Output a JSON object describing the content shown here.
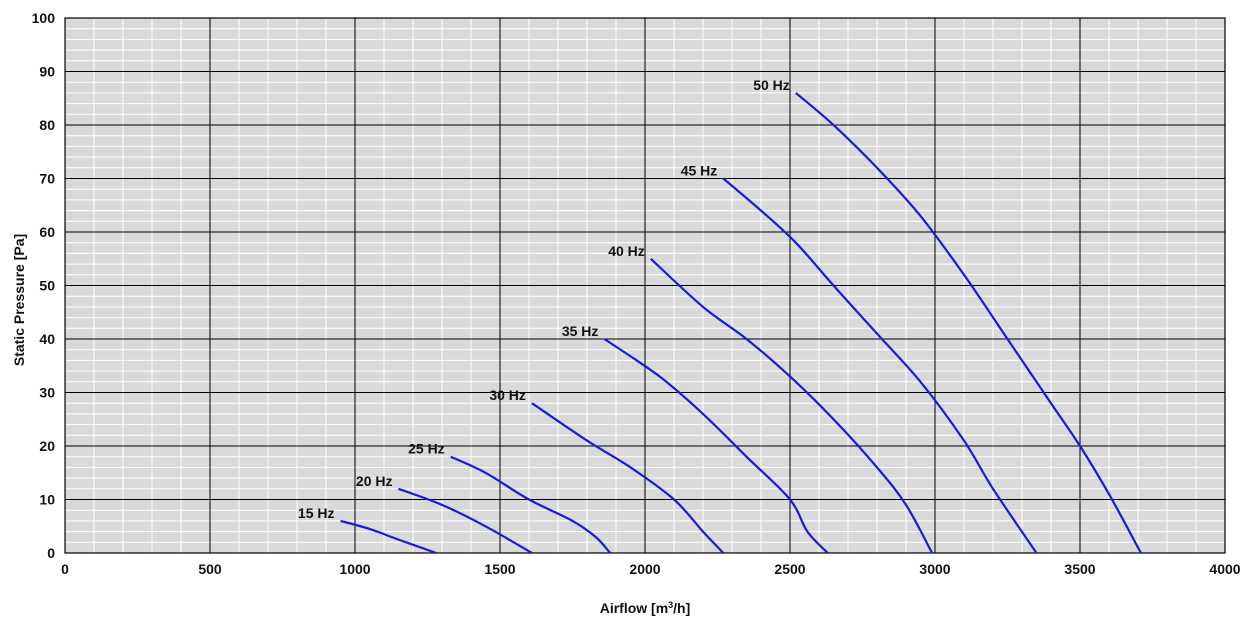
{
  "chart_data": {
    "type": "line",
    "xlabel": "Airflow [m",
    "xlabel_sup": "3",
    "xlabel_tail": "/h]",
    "ylabel": "Static Pressure  [Pa]",
    "xlim": [
      0,
      4000
    ],
    "ylim": [
      0,
      100
    ],
    "x_ticks": [
      "0",
      "500",
      "1000",
      "1500",
      "2000",
      "2500",
      "3000",
      "3500",
      "4000"
    ],
    "y_ticks": [
      "0",
      "10",
      "20",
      "30",
      "40",
      "50",
      "60",
      "70",
      "80",
      "90",
      "100"
    ],
    "grid": "major and minor",
    "legend": "none",
    "colors": {
      "plot_bg": "#d9d9d9",
      "major_grid": "#000000",
      "minor_grid": "#ffffff",
      "curve": "#1a1adb"
    },
    "series": [
      {
        "name": "15 Hz",
        "points": [
          [
            950,
            6
          ],
          [
            1050,
            4.5
          ],
          [
            1150,
            2.5
          ],
          [
            1280,
            0
          ]
        ]
      },
      {
        "name": "20 Hz",
        "points": [
          [
            1150,
            12
          ],
          [
            1300,
            9
          ],
          [
            1450,
            5
          ],
          [
            1610,
            0
          ]
        ]
      },
      {
        "name": "25 Hz",
        "points": [
          [
            1330,
            18
          ],
          [
            1450,
            15
          ],
          [
            1600,
            10
          ],
          [
            1750,
            6
          ],
          [
            1830,
            3
          ],
          [
            1880,
            0
          ]
        ]
      },
      {
        "name": "30 Hz",
        "points": [
          [
            1610,
            28
          ],
          [
            1800,
            21
          ],
          [
            1950,
            16
          ],
          [
            2100,
            10
          ],
          [
            2200,
            4
          ],
          [
            2270,
            0
          ]
        ]
      },
      {
        "name": "35 Hz",
        "points": [
          [
            1860,
            40
          ],
          [
            2050,
            33
          ],
          [
            2200,
            26
          ],
          [
            2350,
            18
          ],
          [
            2500,
            10
          ],
          [
            2560,
            4
          ],
          [
            2630,
            0
          ]
        ]
      },
      {
        "name": "40 Hz",
        "points": [
          [
            2020,
            55
          ],
          [
            2200,
            46
          ],
          [
            2350,
            40
          ],
          [
            2500,
            33
          ],
          [
            2650,
            25
          ],
          [
            2800,
            16
          ],
          [
            2900,
            9
          ],
          [
            2990,
            0
          ]
        ]
      },
      {
        "name": "45 Hz",
        "points": [
          [
            2270,
            70
          ],
          [
            2400,
            64
          ],
          [
            2520,
            58
          ],
          [
            2650,
            50
          ],
          [
            2800,
            41
          ],
          [
            2950,
            32
          ],
          [
            3100,
            21
          ],
          [
            3200,
            12
          ],
          [
            3350,
            0
          ]
        ]
      },
      {
        "name": "50 Hz",
        "points": [
          [
            2520,
            86
          ],
          [
            2650,
            80
          ],
          [
            2800,
            72
          ],
          [
            2950,
            63
          ],
          [
            3100,
            52
          ],
          [
            3250,
            40
          ],
          [
            3400,
            28
          ],
          [
            3500,
            20
          ],
          [
            3600,
            11
          ],
          [
            3710,
            0
          ]
        ]
      }
    ],
    "label_texts": [
      "15 Hz",
      "20 Hz",
      "25 Hz",
      "30 Hz",
      "35  Hz",
      "40 Hz",
      "45 Hz",
      "50 Hz"
    ]
  }
}
